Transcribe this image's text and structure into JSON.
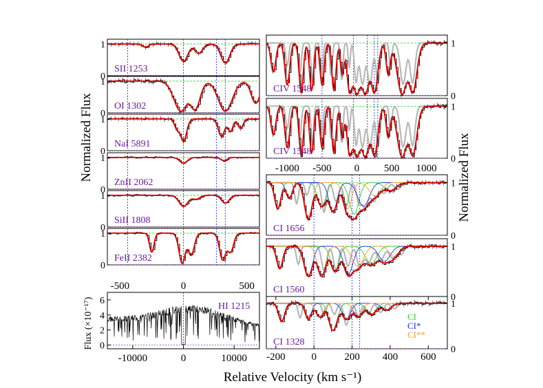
{
  "figure": {
    "ylabel_left": "Normalized Flux",
    "ylabel_right": "Normalized Flux",
    "xlabel": "Relative Velocity (km s⁻¹)",
    "hi_ylabel": "Flux (×10⁻¹⁷)"
  },
  "colors": {
    "data": "#000000",
    "model": "#e00000",
    "ion_label": "#6a1b9a",
    "marker": "#2233cc",
    "contaminant": "#b8b8b8",
    "green": "#33cc33",
    "blue": "#2233dd",
    "orange": "#f0a030"
  },
  "chart_data": [
    {
      "type": "line",
      "panel": "left-1",
      "label": "SII 1253",
      "xlim": [
        -600,
        600
      ],
      "ylim": [
        0,
        1.15
      ],
      "yticks": [
        0,
        1
      ],
      "components": [
        {
          "v": 0,
          "d": 0.55,
          "w": 35
        },
        {
          "v": 120,
          "d": 0.3,
          "w": 30
        },
        {
          "v": 330,
          "d": 0.6,
          "w": 35
        },
        {
          "v": -300,
          "d": 0.1,
          "w": 25
        }
      ]
    },
    {
      "type": "line",
      "panel": "left-2",
      "label": "OI 1302",
      "xlim": [
        -600,
        600
      ],
      "ylim": [
        0,
        1.15
      ],
      "yticks": [
        0,
        1
      ],
      "components": [
        {
          "v": -20,
          "d": 0.95,
          "w": 55
        },
        {
          "v": 90,
          "d": 0.9,
          "w": 40
        },
        {
          "v": 330,
          "d": 0.95,
          "w": 55
        },
        {
          "v": 570,
          "d": 0.7,
          "w": 35
        }
      ]
    },
    {
      "type": "line",
      "panel": "left-3",
      "label": "NaI 5891",
      "xlim": [
        -600,
        600
      ],
      "ylim": [
        0,
        1.15
      ],
      "yticks": [
        0,
        1
      ],
      "components": [
        {
          "v": 0,
          "d": 0.7,
          "w": 25
        },
        {
          "v": -50,
          "d": 0.3,
          "w": 20
        },
        {
          "v": 300,
          "d": 0.55,
          "w": 25
        },
        {
          "v": 370,
          "d": 0.4,
          "w": 20
        },
        {
          "v": 450,
          "d": 0.3,
          "w": 20
        }
      ]
    },
    {
      "type": "line",
      "panel": "left-4",
      "label": "ZnII 2062",
      "xlim": [
        -600,
        600
      ],
      "ylim": [
        0,
        1.15
      ],
      "yticks": [
        0,
        1
      ],
      "components": [
        {
          "v": 0,
          "d": 0.18,
          "w": 30
        },
        {
          "v": 320,
          "d": 0.1,
          "w": 25
        }
      ]
    },
    {
      "type": "line",
      "panel": "left-5",
      "label": "SiII 1808",
      "xlim": [
        -600,
        600
      ],
      "ylim": [
        0,
        1.15
      ],
      "yticks": [
        0,
        1
      ],
      "components": [
        {
          "v": 0,
          "d": 0.35,
          "w": 35
        },
        {
          "v": 100,
          "d": 0.12,
          "w": 30
        },
        {
          "v": 330,
          "d": 0.25,
          "w": 30
        }
      ]
    },
    {
      "type": "line",
      "panel": "left-6",
      "label": "FeII 2382",
      "xlim": [
        -600,
        600
      ],
      "ylim": [
        0,
        1.15
      ],
      "yticks": [
        0,
        1
      ],
      "components": [
        {
          "v": -250,
          "d": 0.6,
          "w": 18
        },
        {
          "v": -10,
          "d": 0.95,
          "w": 25
        },
        {
          "v": 60,
          "d": 0.7,
          "w": 25
        },
        {
          "v": 310,
          "d": 0.85,
          "w": 25
        },
        {
          "v": 370,
          "d": 0.6,
          "w": 25
        }
      ]
    },
    {
      "type": "line",
      "panel": "left-hi",
      "label": "HI 1215",
      "xlim": [
        -15000,
        15000
      ],
      "ylim": [
        -0.5,
        7
      ],
      "yticks": [
        0,
        2,
        4,
        6
      ],
      "xticks": [
        -10000,
        0,
        10000
      ],
      "markers": [
        0
      ]
    },
    {
      "type": "line",
      "panel": "right-1",
      "label": "CIV 1548",
      "xlim": [
        -1300,
        1300
      ],
      "ylim": [
        0,
        1.15
      ],
      "yticks": [
        0,
        1
      ],
      "components": [
        {
          "v": -1200,
          "d": 0.55,
          "w": 35
        },
        {
          "v": -1000,
          "d": 0.8,
          "w": 35
        },
        {
          "v": -800,
          "d": 0.95,
          "w": 30
        },
        {
          "v": -650,
          "d": 0.9,
          "w": 30
        },
        {
          "v": -500,
          "d": 0.8,
          "w": 30
        },
        {
          "v": -330,
          "d": 0.9,
          "w": 30
        },
        {
          "v": -210,
          "d": 0.6,
          "w": 25
        },
        {
          "v": -100,
          "d": 0.95,
          "w": 40
        },
        {
          "v": 0,
          "d": 0.98,
          "w": 60
        },
        {
          "v": 120,
          "d": 0.98,
          "w": 60
        },
        {
          "v": 250,
          "d": 0.95,
          "w": 50
        },
        {
          "v": 450,
          "d": 0.6,
          "w": 30
        },
        {
          "v": 650,
          "d": 0.98,
          "w": 70
        },
        {
          "v": 800,
          "d": 0.95,
          "w": 60
        }
      ]
    },
    {
      "type": "line",
      "panel": "right-2",
      "label": "CIV 1548",
      "xlim": [
        -1300,
        1300
      ],
      "ylim": [
        0,
        1.15
      ],
      "yticks": [
        0,
        1
      ],
      "xticks": [
        -1000,
        -500,
        0,
        500,
        1000
      ],
      "components": [
        {
          "v": -1200,
          "d": 0.55,
          "w": 35
        },
        {
          "v": -1000,
          "d": 0.8,
          "w": 35
        },
        {
          "v": -800,
          "d": 0.95,
          "w": 30
        },
        {
          "v": -650,
          "d": 0.9,
          "w": 30
        },
        {
          "v": -500,
          "d": 0.8,
          "w": 30
        },
        {
          "v": -330,
          "d": 0.9,
          "w": 30
        },
        {
          "v": -210,
          "d": 0.6,
          "w": 25
        },
        {
          "v": -100,
          "d": 0.95,
          "w": 40
        },
        {
          "v": 0,
          "d": 0.98,
          "w": 60
        },
        {
          "v": 120,
          "d": 0.98,
          "w": 60
        },
        {
          "v": 250,
          "d": 0.95,
          "w": 50
        },
        {
          "v": 450,
          "d": 0.6,
          "w": 30
        },
        {
          "v": 650,
          "d": 0.98,
          "w": 70
        },
        {
          "v": 800,
          "d": 0.95,
          "w": 60
        }
      ]
    },
    {
      "type": "line",
      "panel": "right-3",
      "label": "CI 1656",
      "xlim": [
        -250,
        700
      ],
      "ylim": [
        0,
        1.15
      ],
      "yticks": [
        0,
        1
      ],
      "components": [
        {
          "v": -190,
          "d": 0.5,
          "w": 16
        },
        {
          "v": -130,
          "d": 0.3,
          "w": 16
        },
        {
          "v": -30,
          "d": 0.7,
          "w": 20
        },
        {
          "v": 40,
          "d": 0.45,
          "w": 22
        },
        {
          "v": 100,
          "d": 0.55,
          "w": 22
        },
        {
          "v": 175,
          "d": 0.5,
          "w": 22
        },
        {
          "v": 210,
          "d": 0.6,
          "w": 25
        },
        {
          "v": 260,
          "d": 0.45,
          "w": 30
        },
        {
          "v": 320,
          "d": 0.25,
          "w": 30
        },
        {
          "v": 400,
          "d": 0.15,
          "w": 30
        }
      ]
    },
    {
      "type": "line",
      "panel": "right-4",
      "label": "CI 1560",
      "xlim": [
        -250,
        700
      ],
      "ylim": [
        0,
        1.15
      ],
      "yticks": [
        0,
        1
      ],
      "components": [
        {
          "v": -180,
          "d": 0.45,
          "w": 16
        },
        {
          "v": -30,
          "d": 0.6,
          "w": 22
        },
        {
          "v": 40,
          "d": 0.6,
          "w": 22
        },
        {
          "v": 110,
          "d": 0.5,
          "w": 22
        },
        {
          "v": 180,
          "d": 0.55,
          "w": 25
        },
        {
          "v": 230,
          "d": 0.4,
          "w": 30
        },
        {
          "v": 300,
          "d": 0.35,
          "w": 30
        },
        {
          "v": 370,
          "d": 0.3,
          "w": 30
        },
        {
          "v": 420,
          "d": 0.2,
          "w": 25
        }
      ]
    },
    {
      "type": "line",
      "panel": "right-5",
      "label": "CI 1328",
      "xlim": [
        -250,
        700
      ],
      "ylim": [
        0,
        1.15
      ],
      "yticks": [
        0,
        1
      ],
      "xticks": [
        -200,
        0,
        200,
        400,
        600
      ],
      "components": [
        {
          "v": -170,
          "d": 0.4,
          "w": 16
        },
        {
          "v": -30,
          "d": 0.35,
          "w": 16
        },
        {
          "v": 30,
          "d": 0.3,
          "w": 20
        },
        {
          "v": 100,
          "d": 0.6,
          "w": 22
        },
        {
          "v": 170,
          "d": 0.35,
          "w": 22
        },
        {
          "v": 230,
          "d": 0.3,
          "w": 22
        },
        {
          "v": 300,
          "d": 0.25,
          "w": 25
        },
        {
          "v": 380,
          "d": 0.15,
          "w": 25
        }
      ],
      "legend": [
        "CI",
        "CI*",
        "CI**"
      ]
    }
  ]
}
